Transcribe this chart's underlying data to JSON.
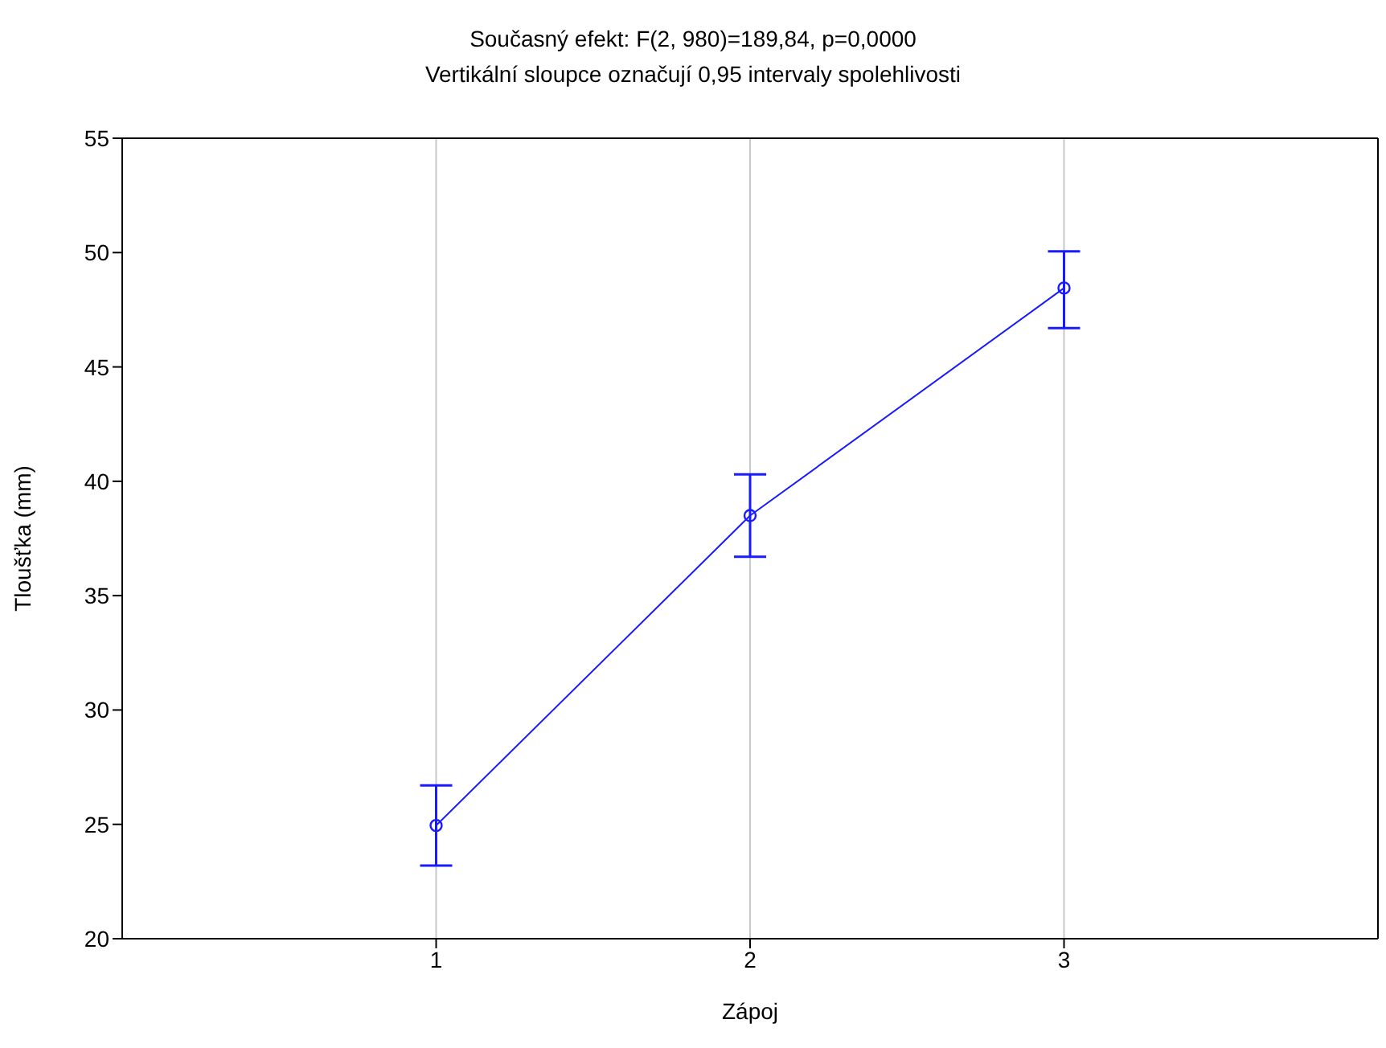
{
  "chart_data": {
    "type": "line",
    "title": "Současný efekt: F(2, 980)=189,84, p=0,0000",
    "subtitle": "Vertikální sloupce označují 0,95 intervaly spolehlivosti",
    "xlabel": "Zápoj",
    "ylabel": "Tloušťka (mm)",
    "x": [
      1,
      2,
      3
    ],
    "series": [
      {
        "color": "#1a1aff",
        "values": [
          24.95,
          38.5,
          48.45
        ],
        "errors": [
          [
            23.2,
            26.7
          ],
          [
            36.7,
            40.3
          ],
          [
            46.7,
            50.05
          ]
        ]
      }
    ],
    "xlim": [
      0,
      4
    ],
    "xticks": [
      1,
      2,
      3
    ],
    "ylim": [
      20,
      55
    ],
    "yticks": [
      20,
      25,
      30,
      35,
      40,
      45,
      50,
      55
    ],
    "grid": "x",
    "marker": "circle",
    "line_style": "solid",
    "legend": false
  }
}
